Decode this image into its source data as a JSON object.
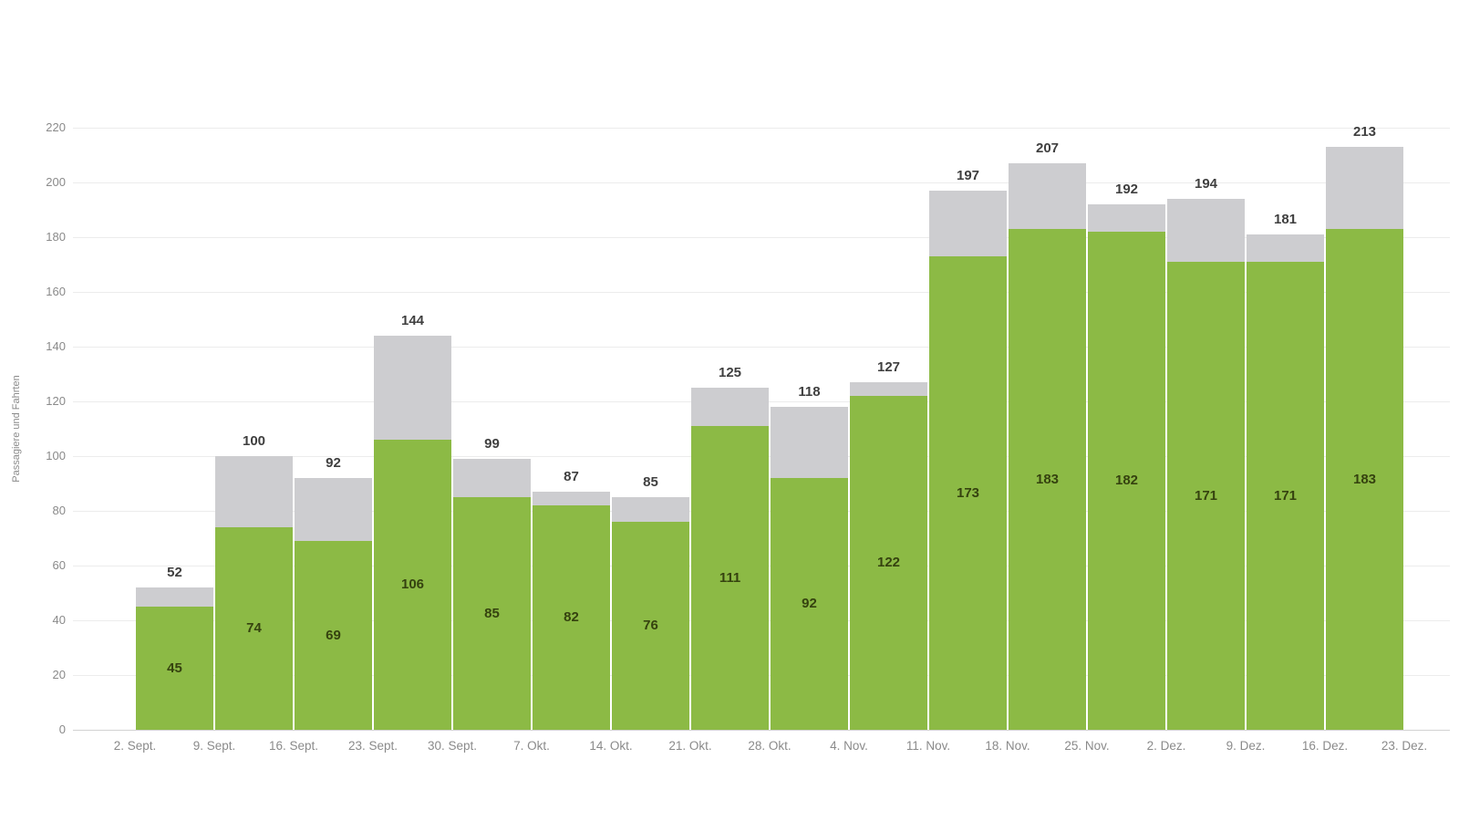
{
  "chart_data": {
    "type": "bar",
    "stacked": true,
    "title": "",
    "xlabel": "",
    "ylabel": "Passagiere und Fahrten",
    "ylim": [
      0,
      220
    ],
    "ytick_interval": 20,
    "grid": true,
    "legend": false,
    "yticks": [
      0,
      20,
      40,
      60,
      80,
      100,
      120,
      140,
      160,
      180,
      200,
      220
    ],
    "x_bin_edges": [
      "2. Sept.",
      "9. Sept.",
      "16. Sept.",
      "23. Sept.",
      "30. Sept.",
      "7. Okt.",
      "14. Okt.",
      "21. Okt.",
      "28. Okt.",
      "4. Nov.",
      "11. Nov.",
      "18. Nov.",
      "25. Nov.",
      "2. Dez.",
      "9. Dez.",
      "16. Dez.",
      "23. Dez."
    ],
    "series_names": [
      "green-segment",
      "gray-segment"
    ],
    "bars": [
      {
        "total": 52,
        "green": 45
      },
      {
        "total": 100,
        "green": 74
      },
      {
        "total": 92,
        "green": 69
      },
      {
        "total": 144,
        "green": 106
      },
      {
        "total": 99,
        "green": 85
      },
      {
        "total": 87,
        "green": 82
      },
      {
        "total": 85,
        "green": 76
      },
      {
        "total": 125,
        "green": 111
      },
      {
        "total": 118,
        "green": 92
      },
      {
        "total": 127,
        "green": 122
      },
      {
        "total": 197,
        "green": 173
      },
      {
        "total": 207,
        "green": 183
      },
      {
        "total": 192,
        "green": 182
      },
      {
        "total": 194,
        "green": 171
      },
      {
        "total": 181,
        "green": 171
      },
      {
        "total": 213,
        "green": 183
      }
    ],
    "colors": {
      "green": "#8cba45",
      "gray": "#cdcdd0",
      "gridline": "#ececec",
      "axis_line": "#d2d2d2",
      "tick_label": "#8a8a8a",
      "total_label": "#3f3f3f",
      "inner_label": "#35420f",
      "background": "#ffffff"
    }
  }
}
